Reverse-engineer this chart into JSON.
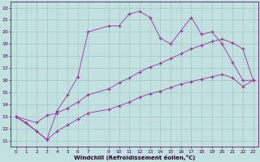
{
  "xlabel": "Windchill (Refroidissement éolien,°C)",
  "background_color": "#c2e0e0",
  "grid_color": "#a0c8c8",
  "line_color": "#993399",
  "x_ticks": [
    0,
    1,
    2,
    3,
    4,
    5,
    6,
    7,
    9,
    10,
    11,
    12,
    13,
    14,
    15,
    16,
    17,
    18,
    19,
    20,
    21,
    22,
    23
  ],
  "y_ticks": [
    11,
    12,
    13,
    14,
    15,
    16,
    17,
    18,
    19,
    20,
    21,
    22
  ],
  "xlim": [
    -0.5,
    23.5
  ],
  "ylim": [
    10.5,
    22.5
  ],
  "s1_x": [
    0,
    1,
    2,
    3,
    4,
    5,
    6,
    7,
    9,
    10,
    11,
    12,
    13,
    14,
    15,
    16,
    17,
    18,
    19,
    20,
    21,
    22,
    23
  ],
  "s1_y": [
    13.0,
    12.5,
    11.8,
    11.1,
    13.5,
    14.8,
    16.3,
    20.0,
    20.5,
    20.5,
    21.5,
    21.7,
    21.2,
    19.5,
    19.0,
    20.1,
    21.2,
    19.8,
    20.0,
    19.0,
    17.5,
    16.0,
    16.0
  ],
  "s2_x": [
    0,
    2,
    3,
    4,
    5,
    6,
    7,
    9,
    10,
    11,
    12,
    13,
    14,
    15,
    16,
    17,
    18,
    19,
    20,
    21,
    22,
    23
  ],
  "s2_y": [
    13.0,
    12.5,
    13.1,
    13.3,
    13.7,
    14.2,
    14.8,
    15.3,
    15.8,
    16.2,
    16.7,
    17.1,
    17.4,
    17.8,
    18.2,
    18.6,
    18.9,
    19.2,
    19.4,
    19.1,
    18.6,
    16.0
  ],
  "s3_x": [
    0,
    2,
    3,
    4,
    5,
    6,
    7,
    9,
    10,
    11,
    12,
    13,
    14,
    15,
    16,
    17,
    18,
    19,
    20,
    21,
    22,
    23
  ],
  "s3_y": [
    13.0,
    11.8,
    11.1,
    11.8,
    12.3,
    12.8,
    13.3,
    13.6,
    13.9,
    14.2,
    14.6,
    14.9,
    15.1,
    15.4,
    15.7,
    15.9,
    16.1,
    16.3,
    16.5,
    16.2,
    15.5,
    16.0
  ]
}
